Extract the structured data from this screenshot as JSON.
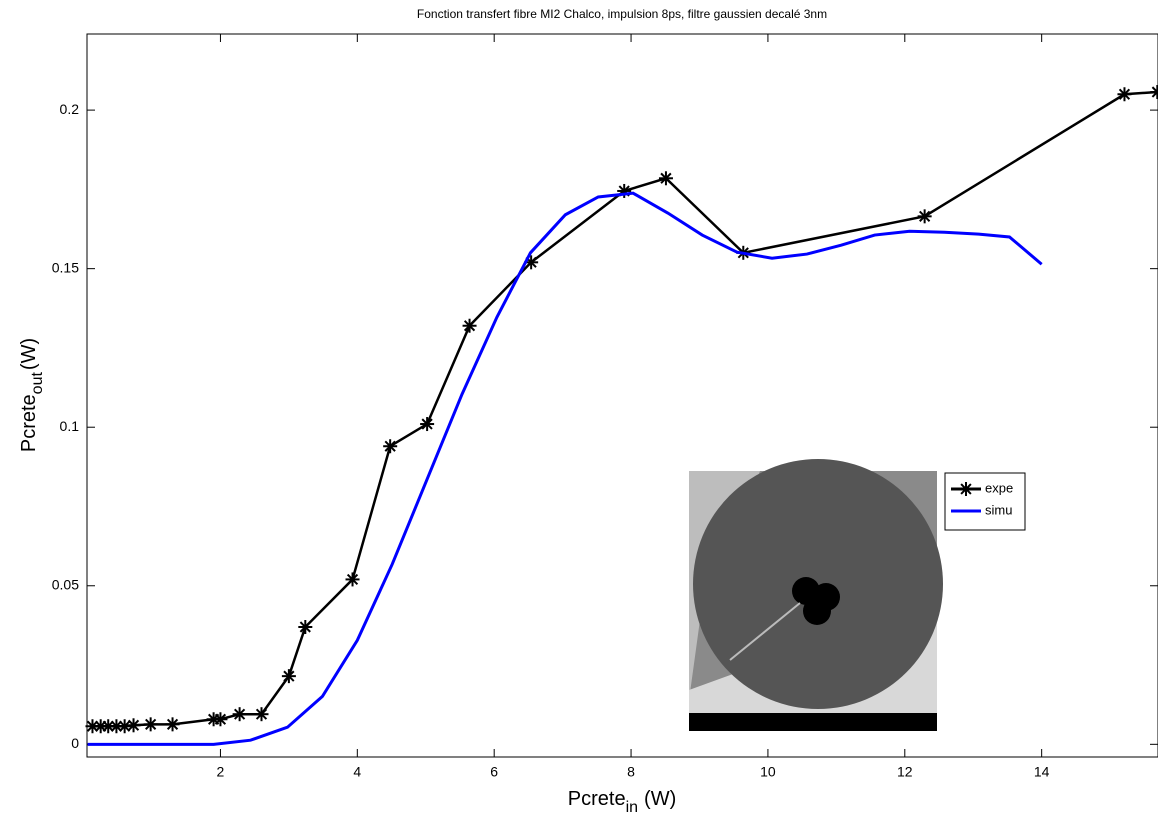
{
  "chart_data": {
    "type": "line",
    "title": "Fonction transfert fibre MI2 Chalco, impulsion 8ps, filtre gaussien decalé 3nm",
    "xlabel": {
      "text": "Pcrete",
      "sub": "in",
      "unit": "(W)"
    },
    "ylabel": {
      "text": "Pcrete",
      "sub": "out",
      "unit": "(W)"
    },
    "xlim": [
      0.05,
      15.7
    ],
    "ylim": [
      -0.004,
      0.224
    ],
    "xticks": [
      2,
      4,
      6,
      8,
      10,
      12,
      14
    ],
    "yticks": [
      0,
      0.05,
      0.1,
      0.15,
      0.2
    ],
    "series": [
      {
        "name": "expe",
        "color": "#000000",
        "marker": "asterisk",
        "x": [
          0.13,
          0.25,
          0.36,
          0.48,
          0.6,
          0.73,
          0.98,
          1.3,
          1.9,
          2.0,
          2.28,
          2.6,
          3.0,
          3.24,
          3.93,
          4.48,
          5.02,
          5.64,
          6.54,
          7.9,
          8.51,
          9.64,
          12.29,
          15.21,
          15.69
        ],
        "values": [
          0.0057,
          0.0057,
          0.0057,
          0.0057,
          0.0057,
          0.006,
          0.0063,
          0.0063,
          0.0079,
          0.0079,
          0.0095,
          0.0095,
          0.0215,
          0.037,
          0.052,
          0.094,
          0.101,
          0.132,
          0.152,
          0.1745,
          0.1785,
          0.155,
          0.1665,
          0.205,
          0.2057
        ]
      },
      {
        "name": "simu",
        "color": "#0000ff",
        "marker": "none",
        "x": [
          0.06,
          1.9,
          2.44,
          2.98,
          3.49,
          4.0,
          4.51,
          5.02,
          5.53,
          6.04,
          6.53,
          7.04,
          7.52,
          8.03,
          8.54,
          9.04,
          9.55,
          10.06,
          10.57,
          11.07,
          11.56,
          12.07,
          12.58,
          13.08,
          13.53,
          14.0
        ],
        "values": [
          0,
          0,
          0.0013,
          0.0054,
          0.0151,
          0.0328,
          0.0568,
          0.0836,
          0.1104,
          0.1347,
          0.155,
          0.167,
          0.1726,
          0.1738,
          0.1675,
          0.1606,
          0.1552,
          0.1533,
          0.1546,
          0.1574,
          0.1606,
          0.1618,
          0.1615,
          0.1609,
          0.16,
          0.1514
        ]
      }
    ],
    "legend": "inside-right"
  }
}
